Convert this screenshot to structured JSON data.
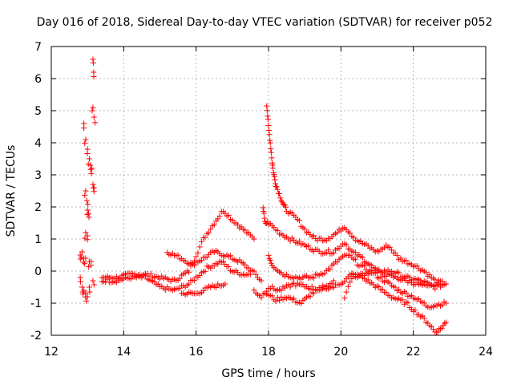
{
  "chart_data": {
    "type": "scatter",
    "title": "Day 016 of 2018, Sidereal Day-to-day VTEC variation (SDTVAR) for receiver p052",
    "xlabel": "GPS time / hours",
    "ylabel": "SDTVAR / TECUs",
    "xlim": [
      12,
      24
    ],
    "ylim": [
      -2,
      7
    ],
    "xticks": [
      "12",
      "14",
      "16",
      "18",
      "20",
      "22",
      "24"
    ],
    "yticks": [
      "-2",
      "-1",
      "0",
      "1",
      "2",
      "3",
      "4",
      "5",
      "6",
      "7"
    ],
    "grid": true,
    "marker": "plus",
    "series_color": "#ff0000",
    "series": [
      {
        "name": "spike-13h",
        "points": [
          [
            12.9,
            4.6
          ],
          [
            12.95,
            4.1
          ],
          [
            13.0,
            3.8
          ],
          [
            13.05,
            3.5
          ],
          [
            13.08,
            3.3
          ],
          [
            13.12,
            3.2
          ],
          [
            13.15,
            2.7
          ],
          [
            13.18,
            2.6
          ],
          [
            13.15,
            6.6
          ],
          [
            13.17,
            6.2
          ],
          [
            13.15,
            5.1
          ],
          [
            13.18,
            4.8
          ],
          [
            12.95,
            2.5
          ],
          [
            12.98,
            2.2
          ],
          [
            13.0,
            1.9
          ],
          [
            13.03,
            1.8
          ],
          [
            12.95,
            1.2
          ],
          [
            13.0,
            1.1
          ],
          [
            12.8,
            0.5
          ],
          [
            12.85,
            0.6
          ],
          [
            12.9,
            0.4
          ],
          [
            12.95,
            0.4
          ],
          [
            13.05,
            0.3
          ],
          [
            13.1,
            0.3
          ],
          [
            12.8,
            -0.2
          ],
          [
            12.85,
            -0.5
          ],
          [
            12.9,
            -0.6
          ],
          [
            12.95,
            -0.7
          ],
          [
            13.0,
            -0.8
          ],
          [
            13.05,
            -0.5
          ],
          [
            13.15,
            -0.3
          ]
        ]
      },
      {
        "name": "trace-a",
        "points": [
          [
            13.4,
            -0.2
          ],
          [
            13.8,
            -0.2
          ],
          [
            14.2,
            -0.1
          ],
          [
            14.6,
            -0.1
          ],
          [
            15.0,
            -0.2
          ],
          [
            15.4,
            -0.3
          ],
          [
            15.8,
            0.0
          ],
          [
            16.0,
            0.5
          ],
          [
            16.2,
            1.0
          ],
          [
            16.5,
            1.5
          ],
          [
            16.75,
            1.9
          ],
          [
            17.0,
            1.6
          ],
          [
            17.3,
            1.3
          ],
          [
            17.6,
            1.0
          ]
        ]
      },
      {
        "name": "trace-b",
        "points": [
          [
            13.4,
            -0.3
          ],
          [
            13.8,
            -0.3
          ],
          [
            14.2,
            -0.2
          ],
          [
            14.6,
            -0.2
          ],
          [
            15.0,
            -0.5
          ],
          [
            15.4,
            -0.6
          ],
          [
            15.8,
            -0.4
          ],
          [
            16.0,
            -0.2
          ],
          [
            16.3,
            0.1
          ],
          [
            16.7,
            0.3
          ],
          [
            17.0,
            0.0
          ],
          [
            17.3,
            -0.1
          ],
          [
            17.5,
            -0.1
          ]
        ]
      },
      {
        "name": "trace-c",
        "points": [
          [
            15.2,
            0.6
          ],
          [
            15.6,
            0.4
          ],
          [
            15.9,
            0.2
          ],
          [
            16.2,
            0.4
          ],
          [
            16.5,
            0.6
          ],
          [
            16.8,
            0.5
          ],
          [
            17.2,
            0.3
          ],
          [
            17.55,
            0.0
          ],
          [
            17.8,
            -0.3
          ]
        ]
      },
      {
        "name": "trace-d",
        "points": [
          [
            15.6,
            -0.7
          ],
          [
            16.0,
            -0.7
          ],
          [
            16.4,
            -0.5
          ],
          [
            16.8,
            -0.4
          ]
        ]
      },
      {
        "name": "spike-18h",
        "points": [
          [
            17.95,
            5.2
          ],
          [
            18.0,
            4.5
          ],
          [
            18.05,
            4.0
          ],
          [
            18.1,
            3.4
          ],
          [
            18.15,
            3.0
          ],
          [
            18.2,
            2.7
          ],
          [
            18.3,
            2.4
          ],
          [
            18.4,
            2.1
          ],
          [
            18.5,
            1.9
          ],
          [
            18.8,
            1.6
          ],
          [
            19.0,
            1.3
          ],
          [
            19.3,
            1.0
          ],
          [
            19.6,
            1.0
          ],
          [
            19.9,
            1.2
          ],
          [
            20.1,
            1.4
          ],
          [
            20.4,
            1.0
          ],
          [
            20.7,
            0.8
          ],
          [
            21.0,
            0.6
          ],
          [
            21.3,
            0.8
          ],
          [
            21.6,
            0.4
          ],
          [
            22.0,
            0.2
          ],
          [
            22.3,
            0.0
          ],
          [
            22.6,
            -0.3
          ],
          [
            22.9,
            -0.4
          ]
        ]
      },
      {
        "name": "trace-e",
        "points": [
          [
            17.85,
            2.0
          ],
          [
            17.9,
            1.5
          ],
          [
            18.0,
            1.5
          ],
          [
            18.3,
            1.2
          ],
          [
            18.6,
            1.0
          ],
          [
            19.0,
            0.8
          ],
          [
            19.4,
            0.6
          ],
          [
            19.8,
            0.6
          ],
          [
            20.1,
            0.9
          ],
          [
            20.3,
            0.6
          ],
          [
            20.6,
            0.4
          ],
          [
            21.0,
            0.0
          ],
          [
            21.4,
            0.0
          ],
          [
            21.8,
            -0.2
          ],
          [
            22.2,
            -0.3
          ],
          [
            22.6,
            -0.5
          ],
          [
            22.9,
            -0.4
          ]
        ]
      },
      {
        "name": "trace-f",
        "points": [
          [
            18.0,
            0.5
          ],
          [
            18.1,
            0.2
          ],
          [
            18.4,
            -0.1
          ],
          [
            18.8,
            -0.2
          ],
          [
            19.2,
            -0.2
          ],
          [
            19.6,
            0.0
          ],
          [
            20.0,
            0.4
          ],
          [
            20.2,
            0.5
          ],
          [
            20.5,
            0.2
          ],
          [
            20.8,
            0.0
          ],
          [
            21.2,
            -0.3
          ],
          [
            21.6,
            -0.6
          ],
          [
            22.0,
            -0.8
          ],
          [
            22.4,
            -1.1
          ],
          [
            22.9,
            -1.0
          ]
        ]
      },
      {
        "name": "trace-g",
        "points": [
          [
            17.95,
            -0.7
          ],
          [
            18.2,
            -0.9
          ],
          [
            18.5,
            -0.8
          ],
          [
            18.9,
            -1.0
          ],
          [
            19.2,
            -0.7
          ],
          [
            19.5,
            -0.5
          ],
          [
            19.8,
            -0.5
          ],
          [
            20.1,
            -0.3
          ],
          [
            20.3,
            -0.1
          ],
          [
            20.6,
            -0.2
          ],
          [
            21.0,
            -0.5
          ],
          [
            21.4,
            -0.8
          ],
          [
            21.8,
            -1.0
          ],
          [
            22.1,
            -1.3
          ],
          [
            22.4,
            -1.6
          ],
          [
            22.6,
            -1.9
          ],
          [
            22.75,
            -1.8
          ],
          [
            22.9,
            -1.6
          ]
        ]
      },
      {
        "name": "trace-h",
        "points": [
          [
            17.6,
            -0.6
          ],
          [
            17.8,
            -0.8
          ],
          [
            18.0,
            -0.5
          ],
          [
            18.3,
            -0.6
          ],
          [
            18.7,
            -0.4
          ],
          [
            19.1,
            -0.5
          ],
          [
            19.5,
            -0.6
          ],
          [
            19.8,
            -0.3
          ]
        ]
      },
      {
        "name": "trace-i",
        "points": [
          [
            20.1,
            -0.8
          ],
          [
            20.3,
            -0.2
          ],
          [
            20.6,
            -0.1
          ],
          [
            20.9,
            0.0
          ],
          [
            21.2,
            -0.1
          ],
          [
            21.5,
            -0.2
          ],
          [
            21.8,
            -0.3
          ],
          [
            22.1,
            -0.4
          ],
          [
            22.4,
            -0.5
          ],
          [
            22.7,
            -0.4
          ]
        ]
      }
    ]
  }
}
